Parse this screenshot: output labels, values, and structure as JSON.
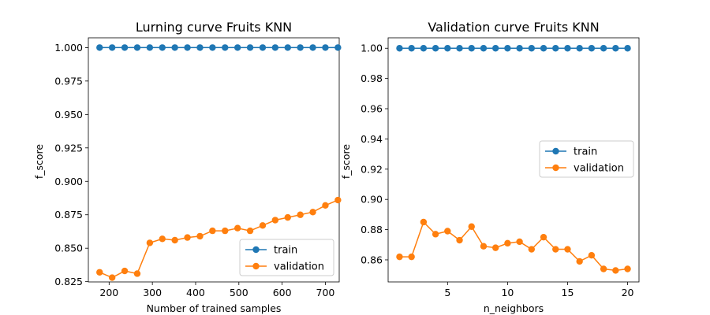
{
  "colors": {
    "train": "#1f77b4",
    "validation": "#ff7f0e"
  },
  "chart_data": [
    {
      "type": "line",
      "title": "Lurning curve Fruits KNN",
      "xlabel": "Number of trained samples",
      "ylabel": "f_score",
      "xlim": [
        152,
        732
      ],
      "ylim": [
        0.8248,
        1.0073
      ],
      "xticks": [
        200,
        300,
        400,
        500,
        600,
        700
      ],
      "yticks": [
        0.825,
        0.85,
        0.875,
        0.9,
        0.925,
        0.95,
        0.975,
        1.0
      ],
      "ytick_decimals": 3,
      "legend": "lower-right",
      "grid": false,
      "x": [
        178,
        207,
        236,
        265,
        294,
        323,
        352,
        381,
        410,
        439,
        468,
        497,
        526,
        555,
        584,
        613,
        642,
        671,
        700,
        729
      ],
      "series": [
        {
          "name": "train",
          "values": [
            1.0,
            1.0,
            1.0,
            1.0,
            1.0,
            1.0,
            1.0,
            1.0,
            1.0,
            1.0,
            1.0,
            1.0,
            1.0,
            1.0,
            1.0,
            1.0,
            1.0,
            1.0,
            1.0,
            1.0
          ]
        },
        {
          "name": "validation",
          "values": [
            0.832,
            0.828,
            0.833,
            0.831,
            0.854,
            0.857,
            0.856,
            0.858,
            0.859,
            0.863,
            0.863,
            0.865,
            0.863,
            0.867,
            0.871,
            0.873,
            0.875,
            0.877,
            0.882,
            0.886
          ]
        }
      ]
    },
    {
      "type": "line",
      "title": "Validation curve Fruits KNN",
      "xlabel": "n_neighbors",
      "ylabel": "f_score",
      "xlim": [
        0.05,
        20.95
      ],
      "ylim": [
        0.8454,
        1.0069
      ],
      "xticks": [
        5,
        10,
        15,
        20
      ],
      "yticks": [
        0.86,
        0.88,
        0.9,
        0.92,
        0.94,
        0.96,
        0.98,
        1.0
      ],
      "ytick_decimals": 2,
      "legend": "center-right",
      "grid": false,
      "x": [
        1,
        2,
        3,
        4,
        5,
        6,
        7,
        8,
        9,
        10,
        11,
        12,
        13,
        14,
        15,
        16,
        17,
        18,
        19,
        20
      ],
      "series": [
        {
          "name": "train",
          "values": [
            1.0,
            1.0,
            1.0,
            1.0,
            1.0,
            1.0,
            1.0,
            1.0,
            1.0,
            1.0,
            1.0,
            1.0,
            1.0,
            1.0,
            1.0,
            1.0,
            1.0,
            1.0,
            1.0,
            1.0
          ]
        },
        {
          "name": "validation",
          "values": [
            0.862,
            0.862,
            0.885,
            0.877,
            0.879,
            0.873,
            0.882,
            0.869,
            0.868,
            0.871,
            0.872,
            0.867,
            0.875,
            0.867,
            0.867,
            0.859,
            0.863,
            0.854,
            0.853,
            0.854
          ]
        }
      ]
    }
  ]
}
